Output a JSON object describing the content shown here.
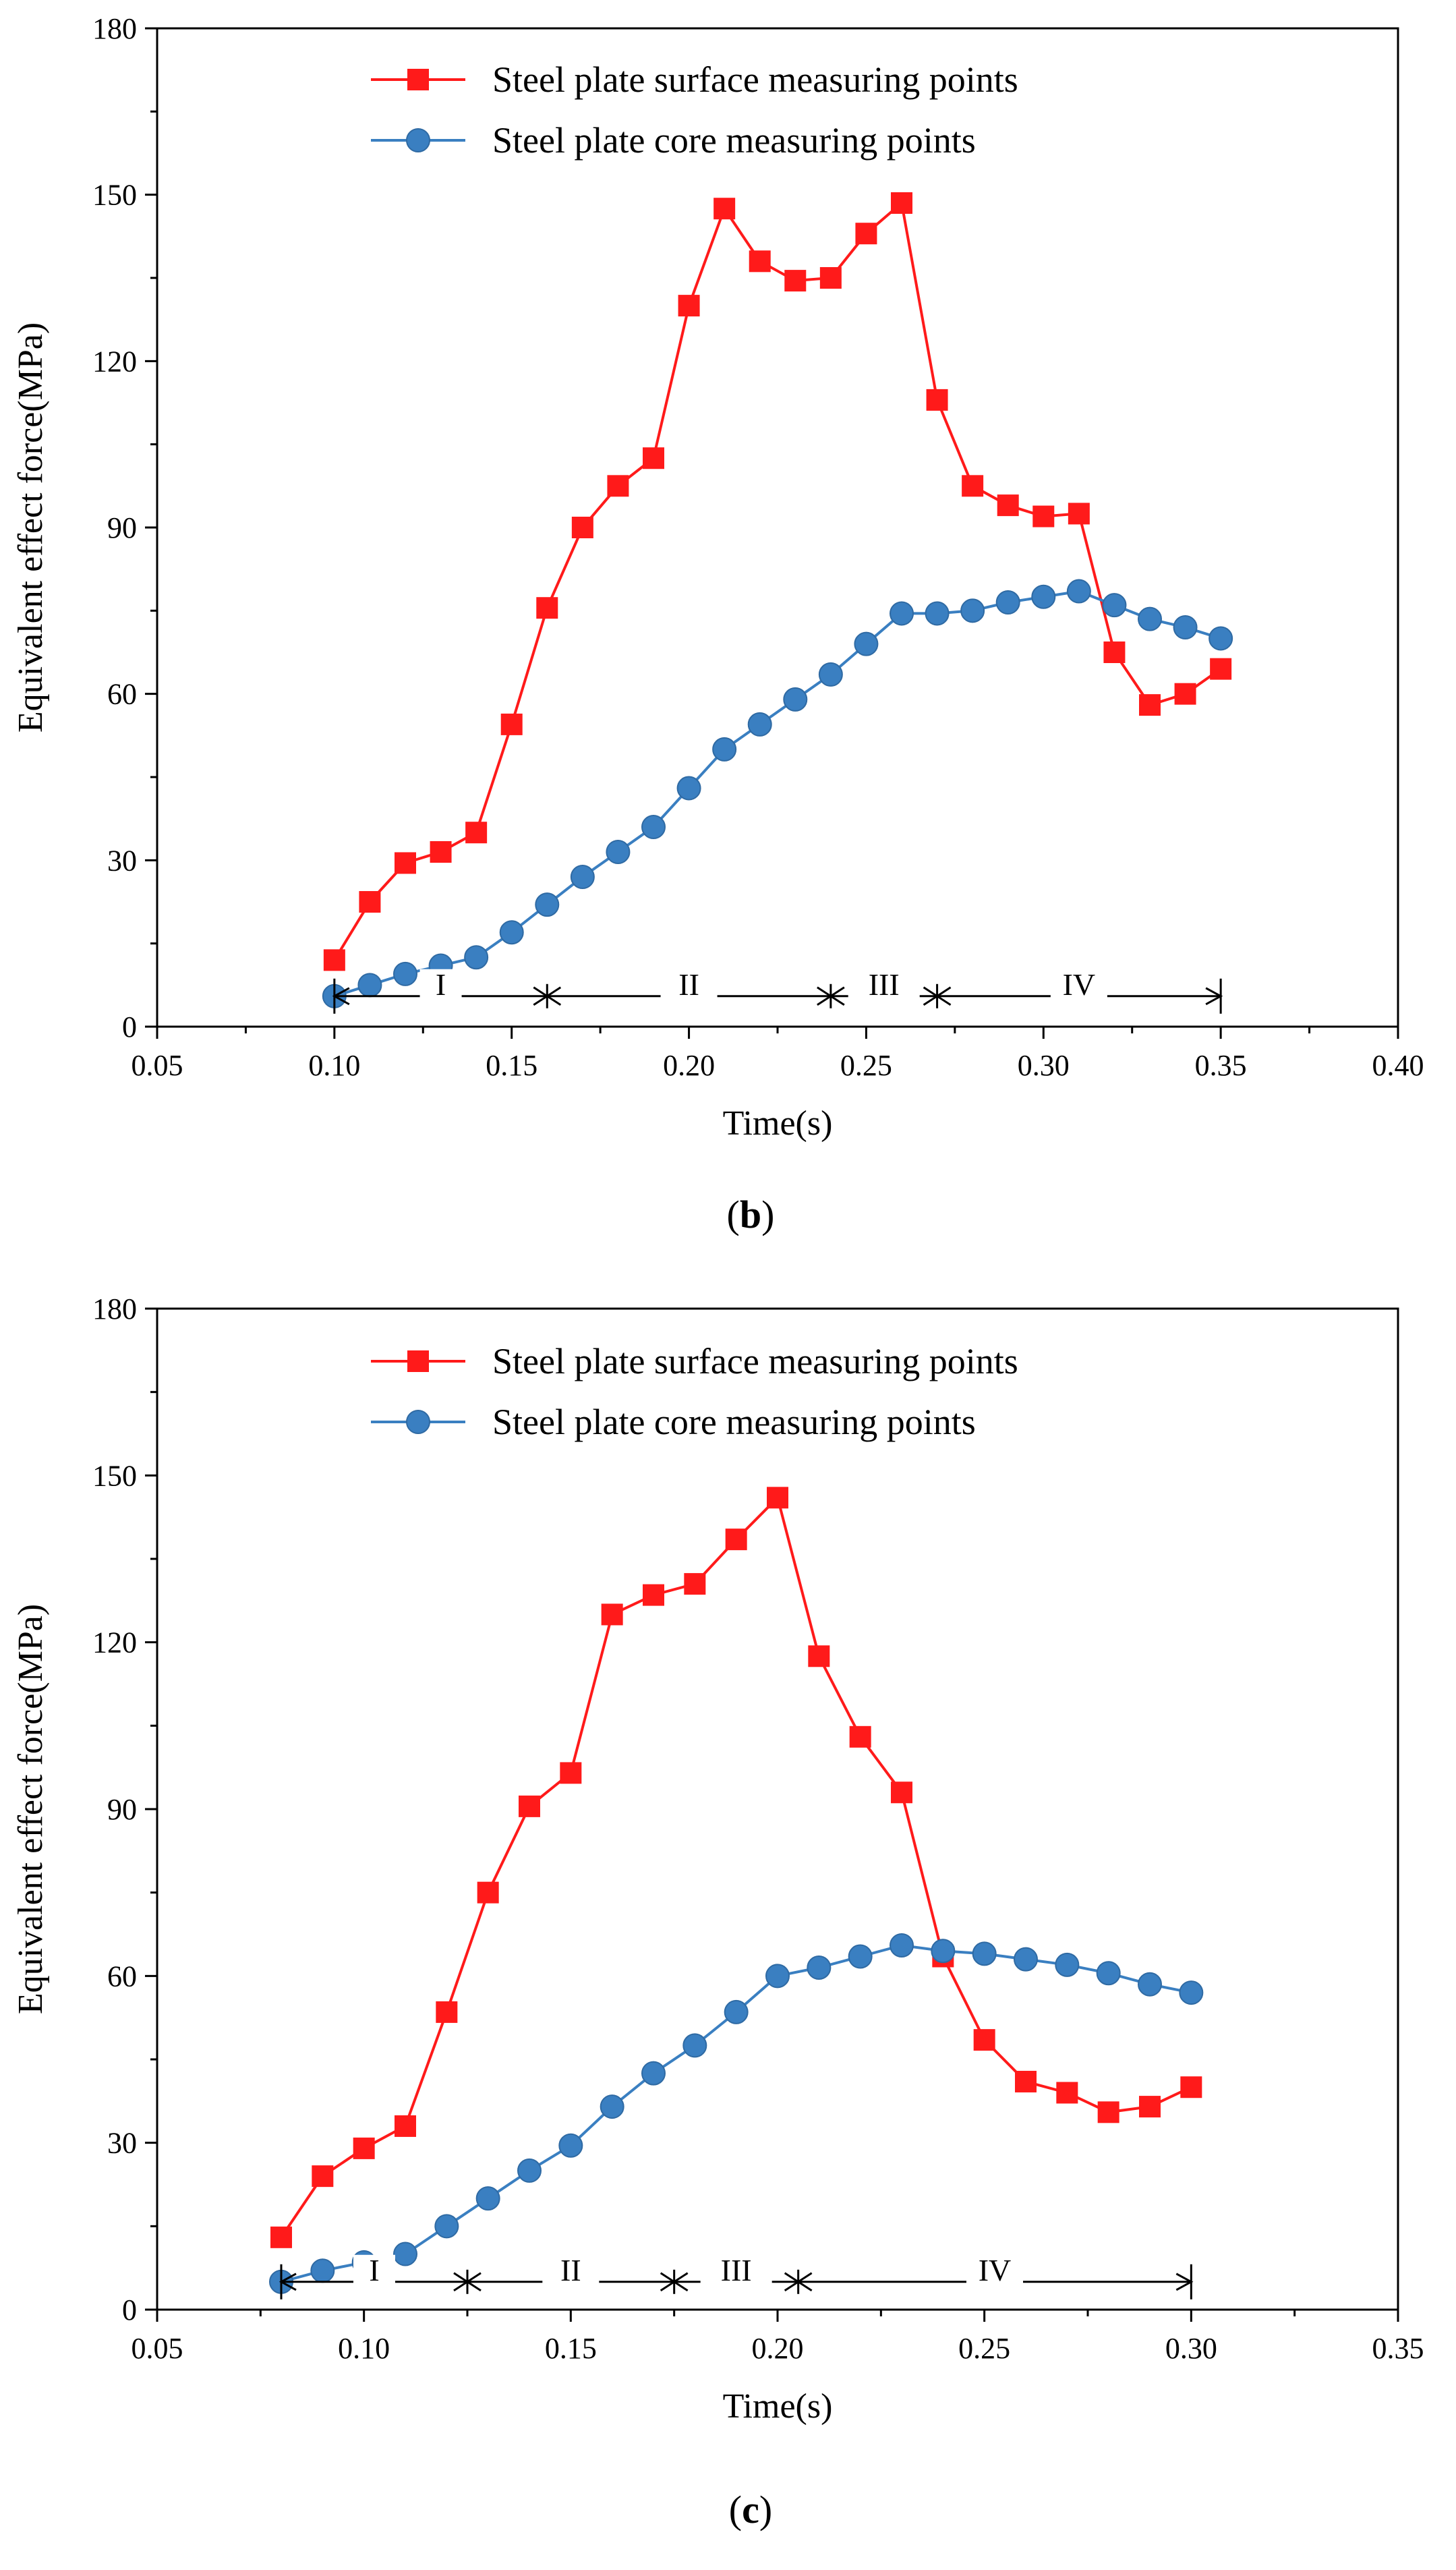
{
  "chart_data": [
    {
      "type": "line",
      "panel": "(b)",
      "caption_letter": "b",
      "xlabel": "Time(s)",
      "ylabel": "Equivalent effect force(MPa)",
      "xlim": [
        0.05,
        0.4
      ],
      "ylim": [
        0,
        180
      ],
      "xticks": [
        0.05,
        0.1,
        0.15,
        0.2,
        0.25,
        0.3,
        0.35,
        0.4
      ],
      "xtick_labels": [
        "0.05",
        "0.10",
        "0.15",
        "0.20",
        "0.25",
        "0.30",
        "0.35",
        "0.40"
      ],
      "yticks": [
        0,
        30,
        60,
        90,
        120,
        150,
        180
      ],
      "ytick_labels": [
        "0",
        "30",
        "60",
        "90",
        "120",
        "150",
        "180"
      ],
      "legend_position": "top-center",
      "series": [
        {
          "name": "Steel plate surface measuring points",
          "color": "#ff1a1a",
          "marker": "square",
          "x": [
            0.1,
            0.11,
            0.12,
            0.13,
            0.14,
            0.15,
            0.16,
            0.17,
            0.18,
            0.19,
            0.2,
            0.21,
            0.22,
            0.23,
            0.24,
            0.25,
            0.26,
            0.27,
            0.28,
            0.29,
            0.3,
            0.31,
            0.32,
            0.33,
            0.34,
            0.35
          ],
          "y": [
            12,
            22.5,
            29.5,
            31.5,
            35,
            54.5,
            75.5,
            90,
            97.5,
            102.5,
            130,
            147.5,
            138,
            134.5,
            135,
            143,
            148.5,
            113,
            97.5,
            94,
            92,
            92.5,
            67.5,
            58,
            60,
            64.5
          ]
        },
        {
          "name": "Steel plate core measuring points",
          "color": "#3a7fc1",
          "marker": "circle",
          "x": [
            0.1,
            0.11,
            0.12,
            0.13,
            0.14,
            0.15,
            0.16,
            0.17,
            0.18,
            0.19,
            0.2,
            0.21,
            0.22,
            0.23,
            0.24,
            0.25,
            0.26,
            0.27,
            0.28,
            0.29,
            0.3,
            0.31,
            0.32,
            0.33,
            0.34,
            0.35
          ],
          "y": [
            5.5,
            7.5,
            9.5,
            11,
            12.5,
            17,
            22,
            27,
            31.5,
            36,
            43,
            50,
            54.5,
            59,
            63.5,
            69,
            74.5,
            74.5,
            75,
            76.5,
            77.5,
            78.5,
            76,
            73.5,
            72,
            70
          ]
        }
      ],
      "phases": {
        "boundaries": [
          0.1,
          0.16,
          0.24,
          0.27,
          0.35
        ],
        "labels": [
          "I",
          "II",
          "III",
          "IV"
        ],
        "y_value": 5.5
      }
    },
    {
      "type": "line",
      "panel": "(c)",
      "caption_letter": "c",
      "xlabel": "Time(s)",
      "ylabel": "Equivalent effect force(MPa)",
      "xlim": [
        0.05,
        0.35
      ],
      "ylim": [
        0,
        180
      ],
      "xticks": [
        0.05,
        0.1,
        0.15,
        0.2,
        0.25,
        0.3,
        0.35
      ],
      "xtick_labels": [
        "0.05",
        "0.10",
        "0.15",
        "0.20",
        "0.25",
        "0.30",
        "0.35"
      ],
      "yticks": [
        0,
        30,
        60,
        90,
        120,
        150,
        180
      ],
      "ytick_labels": [
        "0",
        "30",
        "60",
        "90",
        "120",
        "150",
        "180"
      ],
      "legend_position": "top-center",
      "series": [
        {
          "name": "Steel plate surface measuring points",
          "color": "#ff1a1a",
          "marker": "square",
          "x": [
            0.08,
            0.09,
            0.1,
            0.11,
            0.12,
            0.13,
            0.14,
            0.15,
            0.16,
            0.17,
            0.18,
            0.19,
            0.2,
            0.21,
            0.22,
            0.23,
            0.24,
            0.25,
            0.26,
            0.27,
            0.28,
            0.29,
            0.3
          ],
          "y": [
            13,
            24,
            29,
            33,
            53.5,
            75,
            90.5,
            96.5,
            125,
            128.5,
            130.5,
            138.5,
            146,
            117.5,
            103,
            93,
            63.5,
            48.5,
            41,
            39,
            35.5,
            36.5,
            40
          ]
        },
        {
          "name": "Steel plate core measuring points",
          "color": "#3a7fc1",
          "marker": "circle",
          "x": [
            0.08,
            0.09,
            0.1,
            0.11,
            0.12,
            0.13,
            0.14,
            0.15,
            0.16,
            0.17,
            0.18,
            0.19,
            0.2,
            0.21,
            0.22,
            0.23,
            0.24,
            0.25,
            0.26,
            0.27,
            0.28,
            0.29,
            0.3
          ],
          "y": [
            5,
            7,
            8.5,
            10,
            15,
            20,
            25,
            29.5,
            36.5,
            42.5,
            47.5,
            53.5,
            60,
            61.5,
            63.5,
            65.5,
            64.5,
            64,
            63,
            62,
            60.5,
            58.5,
            57
          ]
        }
      ],
      "phases": {
        "boundaries": [
          0.08,
          0.125,
          0.175,
          0.205,
          0.3
        ],
        "labels": [
          "I",
          "II",
          "III",
          "IV"
        ],
        "y_value": 5
      }
    }
  ]
}
